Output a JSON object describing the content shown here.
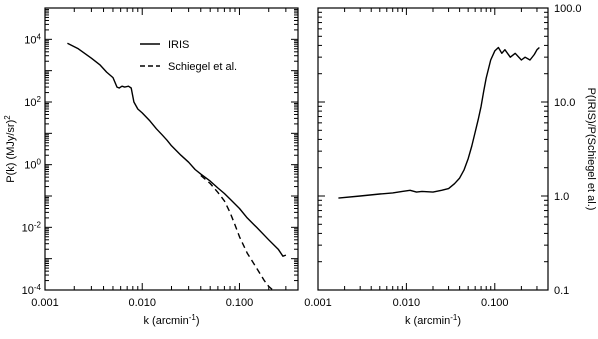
{
  "chart_data": [
    {
      "type": "line",
      "xlabel": "k (arcmin",
      "xlabel_sup": "-1",
      "xlabel_close": ")",
      "ylabel": "P(k) (MJy/sr)",
      "ylabel_sup": "2",
      "xscale": "log",
      "yscale": "log",
      "xlim": [
        0.001,
        0.4
      ],
      "ylim": [
        0.0001,
        100000
      ],
      "x_ticks": [
        {
          "value": 0.001,
          "label": "0.001"
        },
        {
          "value": 0.01,
          "label": "0.010"
        },
        {
          "value": 0.1,
          "label": "0.100"
        }
      ],
      "y_ticks": [
        {
          "value": 0.0001,
          "base": "10",
          "exp": "-4"
        },
        {
          "value": 0.01,
          "base": "10",
          "exp": "-2"
        },
        {
          "value": 1,
          "base": "10",
          "exp": "0"
        },
        {
          "value": 100,
          "base": "10",
          "exp": "2"
        },
        {
          "value": 10000,
          "base": "10",
          "exp": "4"
        }
      ],
      "legend": {
        "placement": "top-right",
        "entries": [
          {
            "label": "IRIS",
            "style": "solid"
          },
          {
            "label": "Schiegel et al.",
            "style": "dashed"
          }
        ]
      },
      "series": [
        {
          "name": "IRIS",
          "style": "solid",
          "color": "#000000",
          "x": [
            0.0017,
            0.0022,
            0.003,
            0.0037,
            0.0043,
            0.005,
            0.0055,
            0.0058,
            0.0062,
            0.0066,
            0.0072,
            0.0077,
            0.0082,
            0.009,
            0.01,
            0.012,
            0.014,
            0.016,
            0.018,
            0.02,
            0.025,
            0.03,
            0.035,
            0.04,
            0.05,
            0.06,
            0.07,
            0.08,
            0.1,
            0.12,
            0.15,
            0.2,
            0.25,
            0.28,
            0.3
          ],
          "y": [
            7500,
            5000,
            2500,
            1500,
            900,
            600,
            300,
            280,
            320,
            300,
            320,
            280,
            100,
            60,
            45,
            25,
            14,
            9,
            6,
            4,
            2,
            1.2,
            0.7,
            0.5,
            0.3,
            0.18,
            0.12,
            0.08,
            0.04,
            0.02,
            0.01,
            0.004,
            0.002,
            0.0012,
            0.0013
          ]
        },
        {
          "name": "Schiegel et al.",
          "style": "dashed",
          "color": "#000000",
          "x": [
            0.04,
            0.05,
            0.06,
            0.07,
            0.08,
            0.09,
            0.1,
            0.12,
            0.15,
            0.18,
            0.2,
            0.22
          ],
          "y": [
            0.45,
            0.25,
            0.13,
            0.07,
            0.03,
            0.012,
            0.005,
            0.0015,
            0.0005,
            0.0002,
            0.00013,
            0.0001
          ]
        }
      ]
    },
    {
      "type": "line",
      "xlabel": "k (arcmin",
      "xlabel_sup": "-1",
      "xlabel_close": ")",
      "ylabel": "P(IRIS)/P(Schiegel et al.)",
      "xscale": "log",
      "yscale": "log",
      "xlim": [
        0.001,
        0.4
      ],
      "ylim": [
        0.1,
        100
      ],
      "x_ticks": [
        {
          "value": 0.001,
          "label": "0.001"
        },
        {
          "value": 0.01,
          "label": "0.010"
        },
        {
          "value": 0.1,
          "label": "0.100"
        }
      ],
      "y_ticks": [
        {
          "value": 0.1,
          "label": "0.1"
        },
        {
          "value": 1,
          "label": "1.0"
        },
        {
          "value": 10,
          "label": "10.0"
        },
        {
          "value": 100,
          "label": "100.0"
        }
      ],
      "series": [
        {
          "style": "solid",
          "color": "#000000",
          "x": [
            0.0017,
            0.003,
            0.005,
            0.007,
            0.009,
            0.011,
            0.013,
            0.015,
            0.02,
            0.025,
            0.03,
            0.035,
            0.04,
            0.045,
            0.05,
            0.055,
            0.06,
            0.065,
            0.07,
            0.075,
            0.08,
            0.09,
            0.1,
            0.11,
            0.12,
            0.13,
            0.15,
            0.17,
            0.2,
            0.22,
            0.25,
            0.28,
            0.3,
            0.32
          ],
          "y": [
            0.95,
            1.0,
            1.05,
            1.08,
            1.12,
            1.15,
            1.1,
            1.12,
            1.1,
            1.15,
            1.2,
            1.35,
            1.55,
            1.9,
            2.5,
            3.4,
            4.8,
            6.5,
            9,
            13,
            18,
            28,
            35,
            38,
            33,
            36,
            30,
            33,
            28,
            30,
            28,
            32,
            36,
            38
          ]
        }
      ]
    }
  ]
}
